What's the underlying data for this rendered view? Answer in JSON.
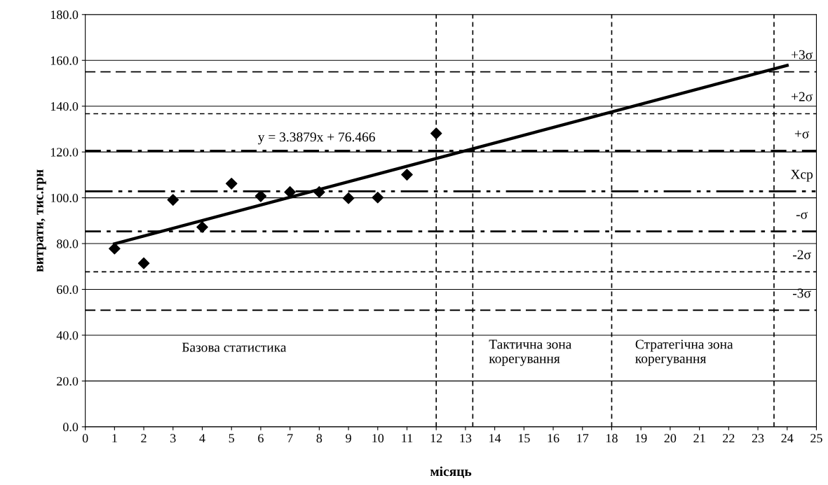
{
  "chart_data": {
    "type": "scatter",
    "xlabel": "місяць",
    "ylabel": "витрати, тис.грн",
    "x": [
      1,
      2,
      3,
      4,
      5,
      6,
      7,
      8,
      9,
      10,
      11,
      12
    ],
    "series": [
      {
        "color": "#000000",
        "marker": "diamond",
        "values": [
          77.8,
          71.4,
          99.1,
          87.2,
          106.2,
          100.7,
          102.5,
          102.5,
          99.8,
          100.1,
          110.1,
          128.1
        ]
      },
      {
        "type": "line",
        "color": "#000000",
        "marker": "none",
        "line_style": "solid",
        "x": [
          1,
          24
        ],
        "values": [
          79.9,
          157.8
        ]
      }
    ],
    "ref_lines": [
      {
        "axis": "y",
        "value": 155.0,
        "label": "+3σ",
        "line_style": "longdash",
        "color": "#000000"
      },
      {
        "axis": "y",
        "value": 136.7,
        "label": "+2σ",
        "line_style": "dashed",
        "color": "#000000"
      },
      {
        "axis": "y",
        "value": 120.5,
        "label": "+σ",
        "line_style": "dashdot",
        "color": "#000000"
      },
      {
        "axis": "y",
        "value": 102.8,
        "label": "Хср",
        "line_style": "dashdotdot",
        "color": "#000000"
      },
      {
        "axis": "y",
        "value": 85.3,
        "label": "-σ",
        "line_style": "dashdot",
        "color": "#000000"
      },
      {
        "axis": "y",
        "value": 67.7,
        "label": "-2σ",
        "line_style": "dashed",
        "color": "#000000"
      },
      {
        "axis": "y",
        "value": 50.9,
        "label": "-3σ",
        "line_style": "longdash",
        "color": "#000000"
      },
      {
        "axis": "x",
        "value": 12,
        "line_style": "dashed",
        "color": "#000000"
      },
      {
        "axis": "x",
        "value": 13.25,
        "line_style": "dashed",
        "color": "#000000"
      },
      {
        "axis": "x",
        "value": 18,
        "line_style": "dashed",
        "color": "#000000"
      },
      {
        "axis": "x",
        "value": 23.55,
        "line_style": "dashed",
        "color": "#000000"
      }
    ],
    "annotations": [
      "y = 3.3879x + 76.466",
      "Базова статистика",
      "Тактична зона\nкорегування",
      "Стратегічна зона\nкорегування"
    ],
    "xlim": [
      0,
      25
    ],
    "xticks": [
      0,
      1,
      2,
      3,
      4,
      5,
      6,
      7,
      8,
      9,
      10,
      11,
      12,
      13,
      14,
      15,
      16,
      17,
      18,
      19,
      20,
      21,
      22,
      23,
      24,
      25
    ],
    "ylim": [
      0,
      180
    ],
    "yticks": [
      {
        "value": 0,
        "label": "0.0"
      },
      {
        "value": 20,
        "label": "20.0"
      },
      {
        "value": 40,
        "label": "40.0"
      },
      {
        "value": 60,
        "label": "60.0"
      },
      {
        "value": 80,
        "label": "80.0"
      },
      {
        "value": 100,
        "label": "100.0"
      },
      {
        "value": 120,
        "label": "120.0"
      },
      {
        "value": 140,
        "label": "140.0"
      },
      {
        "value": 160,
        "label": "160.0"
      },
      {
        "value": 180,
        "label": "180.0"
      }
    ],
    "grid": "y",
    "legend": false
  }
}
